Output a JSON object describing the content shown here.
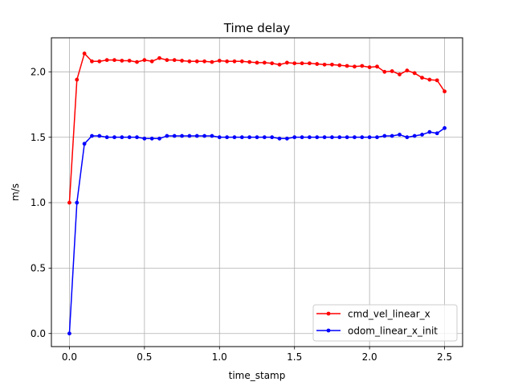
{
  "chart_data": {
    "type": "line",
    "title": "Time delay",
    "xlabel": "time_stamp",
    "ylabel": "m/s",
    "xlim": [
      -0.12,
      2.62
    ],
    "ylim": [
      -0.1,
      2.26
    ],
    "xticks": [
      0.0,
      0.5,
      1.0,
      1.5,
      2.0,
      2.5
    ],
    "xtick_labels": [
      "0.0",
      "0.5",
      "1.0",
      "1.5",
      "2.0",
      "2.5"
    ],
    "yticks": [
      0.0,
      0.5,
      1.0,
      1.5,
      2.0
    ],
    "ytick_labels": [
      "0.0",
      "0.5",
      "1.0",
      "1.5",
      "2.0"
    ],
    "grid": true,
    "legend_position": "lower-right",
    "series": [
      {
        "name": "cmd_vel_linear_x",
        "color": "#ff0000",
        "marker": "dot",
        "x": [
          0.0,
          0.05,
          0.1,
          0.15,
          0.2,
          0.25,
          0.3,
          0.35,
          0.4,
          0.45,
          0.5,
          0.55,
          0.6,
          0.65,
          0.7,
          0.75,
          0.8,
          0.85,
          0.9,
          0.95,
          1.0,
          1.05,
          1.1,
          1.15,
          1.2,
          1.25,
          1.3,
          1.35,
          1.4,
          1.45,
          1.5,
          1.55,
          1.6,
          1.65,
          1.7,
          1.75,
          1.8,
          1.85,
          1.9,
          1.95,
          2.0,
          2.05,
          2.1,
          2.15,
          2.2,
          2.25,
          2.3,
          2.35,
          2.4,
          2.45,
          2.5
        ],
        "y": [
          1.0,
          1.94,
          2.14,
          2.08,
          2.08,
          2.09,
          2.09,
          2.085,
          2.085,
          2.075,
          2.09,
          2.08,
          2.105,
          2.09,
          2.09,
          2.085,
          2.08,
          2.08,
          2.08,
          2.075,
          2.085,
          2.08,
          2.08,
          2.08,
          2.075,
          2.07,
          2.07,
          2.065,
          2.055,
          2.07,
          2.065,
          2.065,
          2.065,
          2.06,
          2.055,
          2.055,
          2.05,
          2.045,
          2.04,
          2.045,
          2.035,
          2.04,
          2.0,
          2.005,
          1.98,
          2.01,
          1.99,
          1.955,
          1.94,
          1.935,
          1.85
        ]
      },
      {
        "name": "odom_linear_x_init",
        "color": "#0000ff",
        "marker": "dot",
        "x": [
          0.0,
          0.05,
          0.1,
          0.15,
          0.2,
          0.25,
          0.3,
          0.35,
          0.4,
          0.45,
          0.5,
          0.55,
          0.6,
          0.65,
          0.7,
          0.75,
          0.8,
          0.85,
          0.9,
          0.95,
          1.0,
          1.05,
          1.1,
          1.15,
          1.2,
          1.25,
          1.3,
          1.35,
          1.4,
          1.45,
          1.5,
          1.55,
          1.6,
          1.65,
          1.7,
          1.75,
          1.8,
          1.85,
          1.9,
          1.95,
          2.0,
          2.05,
          2.1,
          2.15,
          2.2,
          2.25,
          2.3,
          2.35,
          2.4,
          2.45,
          2.5
        ],
        "y": [
          0.0,
          1.0,
          1.45,
          1.51,
          1.51,
          1.5,
          1.5,
          1.5,
          1.5,
          1.5,
          1.49,
          1.49,
          1.49,
          1.51,
          1.51,
          1.51,
          1.51,
          1.51,
          1.51,
          1.51,
          1.5,
          1.5,
          1.5,
          1.5,
          1.5,
          1.5,
          1.5,
          1.5,
          1.49,
          1.49,
          1.5,
          1.5,
          1.5,
          1.5,
          1.5,
          1.5,
          1.5,
          1.5,
          1.5,
          1.5,
          1.5,
          1.5,
          1.51,
          1.51,
          1.52,
          1.5,
          1.51,
          1.52,
          1.54,
          1.53,
          1.57
        ]
      }
    ]
  }
}
